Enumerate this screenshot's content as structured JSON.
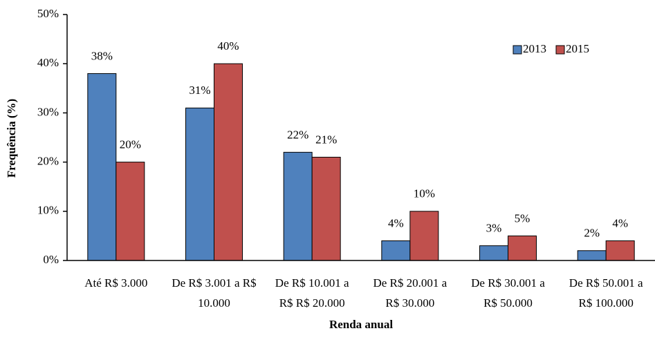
{
  "chart_data": {
    "type": "bar",
    "ylabel": "Frequência (%)",
    "xlabel": "Renda anual",
    "categories": [
      [
        "Até R$ 3.000"
      ],
      [
        "De R$ 3.001 a R$",
        "10.000"
      ],
      [
        "De R$ 10.001 a",
        "R$ R$ 20.000"
      ],
      [
        "De R$ 20.001 a",
        "R$ 30.000"
      ],
      [
        "De R$ 30.001 a",
        "R$ 50.000"
      ],
      [
        "De R$ 50.001 a",
        "R$ 100.000"
      ]
    ],
    "series": [
      {
        "name": "2013",
        "color": "#4f81bd",
        "values": [
          38,
          31,
          22,
          4,
          3,
          2
        ],
        "value_labels": [
          "38%",
          "31%",
          "22%",
          "4%",
          "3%",
          "2%"
        ]
      },
      {
        "name": "2015",
        "color": "#c0504d",
        "values": [
          20,
          40,
          21,
          10,
          5,
          4
        ],
        "value_labels": [
          "20%",
          "40%",
          "21%",
          "10%",
          "5%",
          "4%"
        ]
      }
    ],
    "ylim": [
      0,
      50
    ],
    "yticks": [
      {
        "value": 0,
        "label": "0%"
      },
      {
        "value": 10,
        "label": "10%"
      },
      {
        "value": 20,
        "label": "20%"
      },
      {
        "value": 30,
        "label": "30%"
      },
      {
        "value": 40,
        "label": "40%"
      },
      {
        "value": 50,
        "label": "50%"
      }
    ],
    "grid": false,
    "legend": "upper right"
  }
}
